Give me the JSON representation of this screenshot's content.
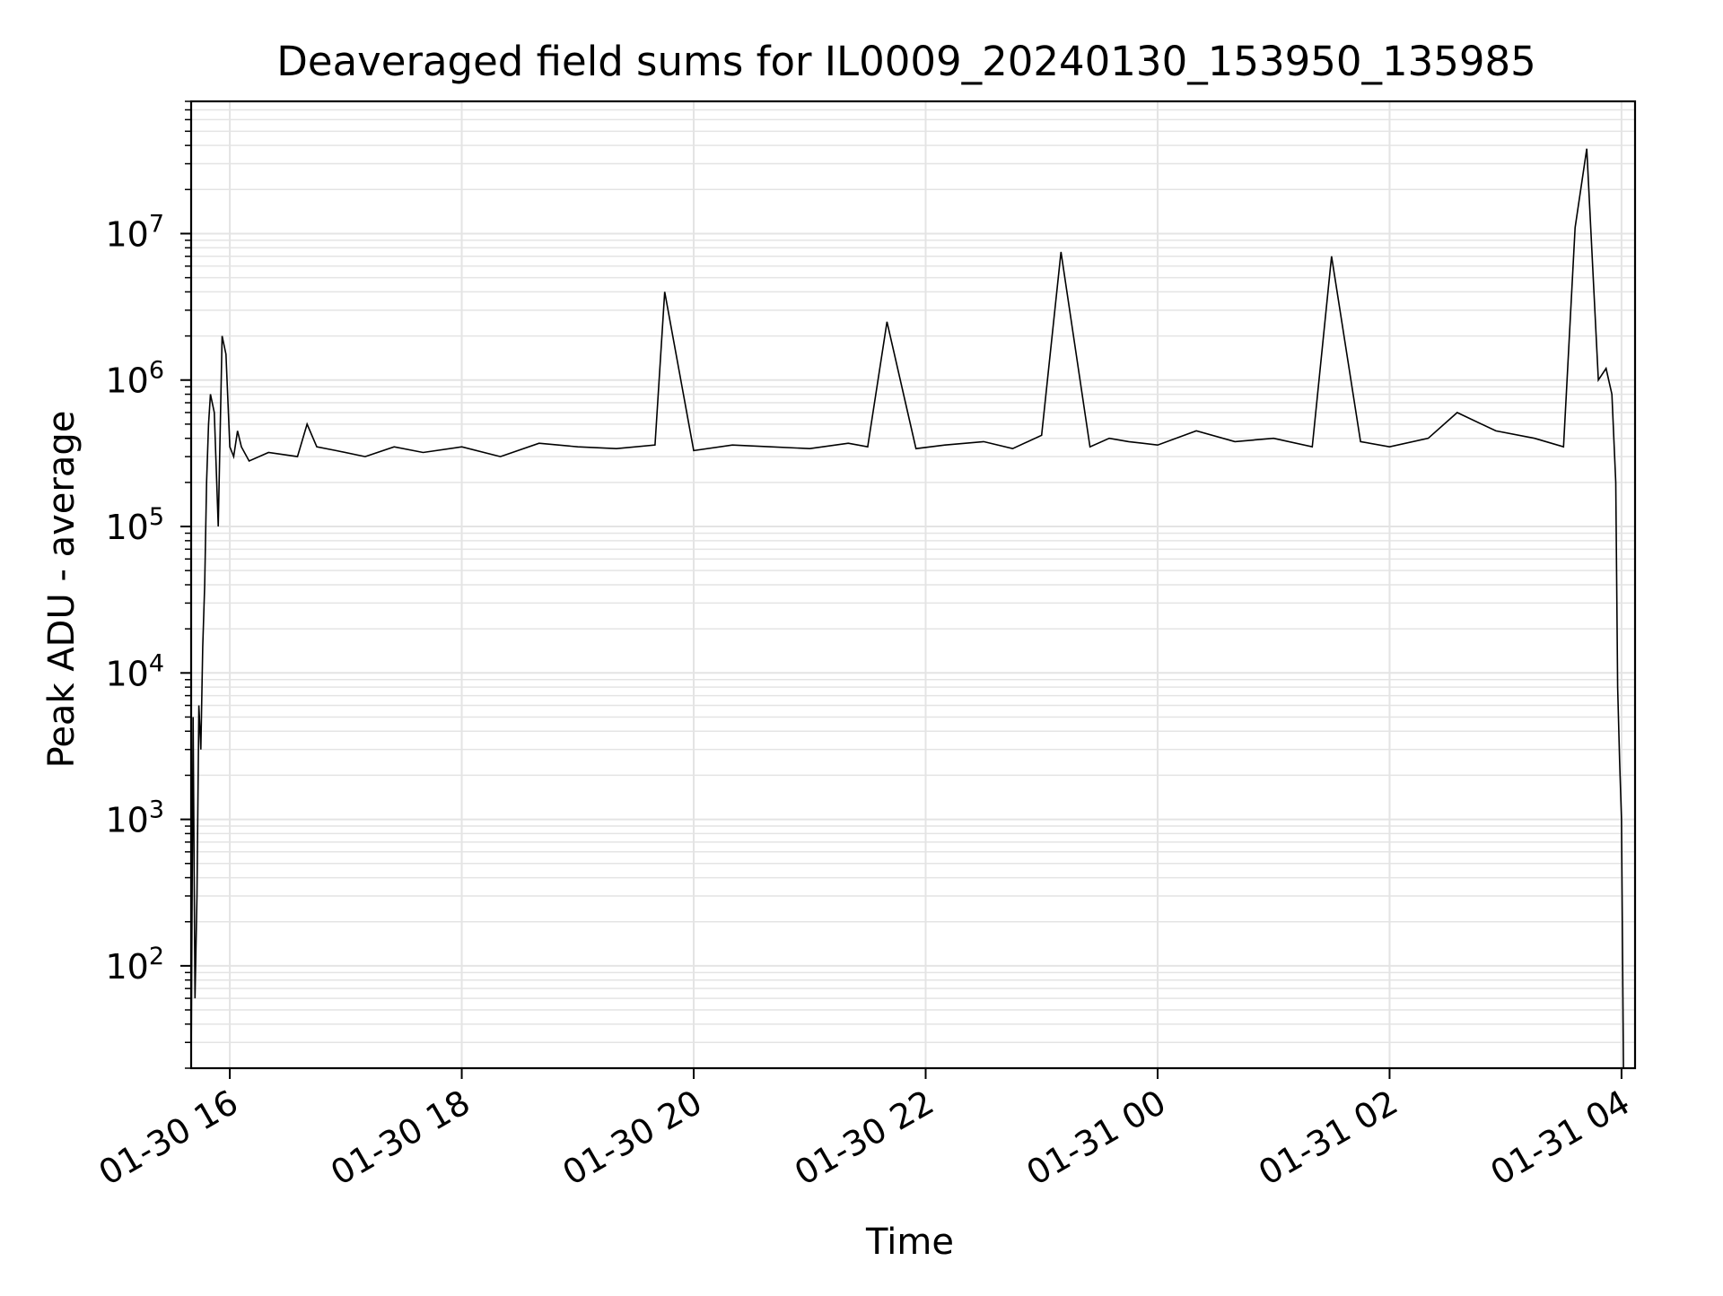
{
  "chart_data": {
    "type": "line",
    "title": "Deaveraged field sums for IL0009_20240130_153950_135985",
    "xlabel": "Time",
    "ylabel": "Peak ADU - average",
    "x_scale": "time",
    "y_scale": "log",
    "xlim": [
      "2024-01-30 15:40",
      "2024-01-31 04:07"
    ],
    "ylim": [
      20,
      80000000
    ],
    "x_ticks": [
      "01-30 16",
      "01-30 18",
      "01-30 20",
      "01-30 22",
      "01-31 00",
      "01-31 02",
      "01-31 04"
    ],
    "y_ticks": [
      {
        "base": "10",
        "exp": "2"
      },
      {
        "base": "10",
        "exp": "3"
      },
      {
        "base": "10",
        "exp": "4"
      },
      {
        "base": "10",
        "exp": "5"
      },
      {
        "base": "10",
        "exp": "6"
      },
      {
        "base": "10",
        "exp": "7"
      }
    ],
    "grid": true,
    "line_color": "#000000",
    "series": [
      {
        "name": "",
        "x": [
          "2024-01-30 15:40",
          "2024-01-30 15:41",
          "2024-01-30 15:42",
          "2024-01-30 15:43",
          "2024-01-30 15:44",
          "2024-01-30 15:45",
          "2024-01-30 15:46",
          "2024-01-30 15:47",
          "2024-01-30 15:48",
          "2024-01-30 15:49",
          "2024-01-30 15:50",
          "2024-01-30 15:52",
          "2024-01-30 15:54",
          "2024-01-30 15:56",
          "2024-01-30 15:58",
          "2024-01-30 16:00",
          "2024-01-30 16:02",
          "2024-01-30 16:04",
          "2024-01-30 16:06",
          "2024-01-30 16:10",
          "2024-01-30 16:20",
          "2024-01-30 16:35",
          "2024-01-30 16:40",
          "2024-01-30 16:45",
          "2024-01-30 16:55",
          "2024-01-30 17:10",
          "2024-01-30 17:25",
          "2024-01-30 17:40",
          "2024-01-30 18:00",
          "2024-01-30 18:20",
          "2024-01-30 18:40",
          "2024-01-30 19:00",
          "2024-01-30 19:20",
          "2024-01-30 19:40",
          "2024-01-30 19:45",
          "2024-01-30 20:00",
          "2024-01-30 20:20",
          "2024-01-30 20:40",
          "2024-01-30 21:00",
          "2024-01-30 21:20",
          "2024-01-30 21:30",
          "2024-01-30 21:40",
          "2024-01-30 21:55",
          "2024-01-30 22:10",
          "2024-01-30 22:30",
          "2024-01-30 22:45",
          "2024-01-30 23:00",
          "2024-01-30 23:10",
          "2024-01-30 23:25",
          "2024-01-30 23:35",
          "2024-01-30 23:45",
          "2024-01-31 00:00",
          "2024-01-31 00:20",
          "2024-01-31 00:40",
          "2024-01-31 01:00",
          "2024-01-31 01:20",
          "2024-01-31 01:30",
          "2024-01-31 01:45",
          "2024-01-31 02:00",
          "2024-01-31 02:20",
          "2024-01-31 02:35",
          "2024-01-31 02:55",
          "2024-01-31 03:15",
          "2024-01-31 03:30",
          "2024-01-31 03:36",
          "2024-01-31 03:42",
          "2024-01-31 03:48",
          "2024-01-31 03:52",
          "2024-01-31 03:55",
          "2024-01-31 03:57",
          "2024-01-31 03:58",
          "2024-01-31 03:59",
          "2024-01-31 04:00",
          "2024-01-31 04:01"
        ],
        "y": [
          20,
          5000,
          60,
          300,
          6000,
          3000,
          15000,
          40000,
          200000,
          500000,
          800000,
          600000,
          100000,
          2000000,
          1500000,
          350000,
          300000,
          450000,
          350000,
          280000,
          320000,
          300000,
          500000,
          350000,
          330000,
          300000,
          350000,
          320000,
          350000,
          300000,
          370000,
          350000,
          340000,
          360000,
          4000000,
          330000,
          360000,
          350000,
          340000,
          370000,
          350000,
          2500000,
          340000,
          360000,
          380000,
          340000,
          420000,
          7500000,
          350000,
          400000,
          380000,
          360000,
          450000,
          380000,
          400000,
          350000,
          7000000,
          380000,
          350000,
          400000,
          600000,
          450000,
          400000,
          350000,
          11000000,
          38000000,
          1000000,
          1200000,
          800000,
          200000,
          8000,
          2500,
          1000,
          20
        ]
      }
    ],
    "annotations": []
  }
}
